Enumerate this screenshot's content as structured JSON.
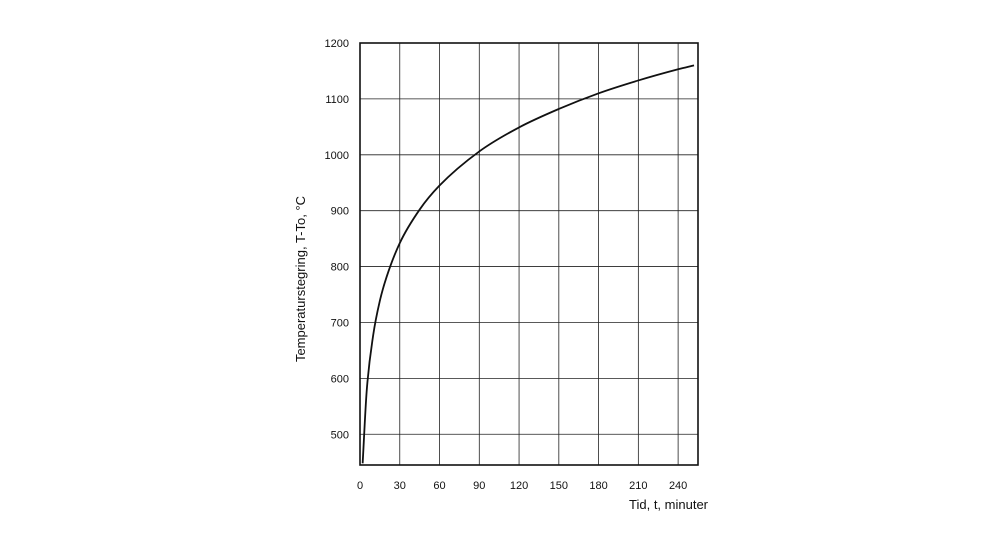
{
  "chart_data": {
    "type": "line",
    "title": "",
    "xlabel": "Tid, t, minuter",
    "ylabel": "Temperaturstegring, T-To, °C",
    "xlim": [
      0,
      255
    ],
    "ylim": [
      445,
      1200
    ],
    "x_ticks": [
      0,
      30,
      60,
      90,
      120,
      150,
      180,
      210,
      240
    ],
    "y_ticks": [
      500,
      600,
      700,
      800,
      900,
      1000,
      1100,
      1200
    ],
    "grid": true,
    "legend": "none",
    "series": [
      {
        "x": [
          2,
          5,
          10,
          15,
          20,
          30,
          45,
          60,
          90,
          120,
          150,
          180,
          210,
          240,
          252
        ],
        "y": [
          448,
          576,
          678,
          739,
          781,
          842,
          902,
          945,
          1006,
          1049,
          1082,
          1110,
          1133,
          1153,
          1160
        ]
      }
    ],
    "colors": {
      "line": "#111111",
      "grid": "#222222",
      "background": "#ffffff"
    }
  }
}
